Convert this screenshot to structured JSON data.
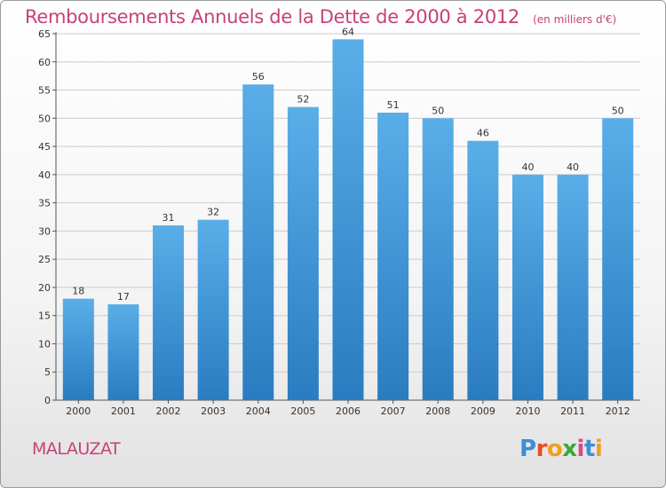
{
  "header": {
    "title": "Remboursements Annuels de la Dette de 2000 à 2012",
    "unit": "(en milliers d'€)"
  },
  "footer": {
    "commune": "MALAUZAT",
    "logo_letters": [
      "P",
      "r",
      "o",
      "x",
      "i",
      "t",
      "i"
    ]
  },
  "colors": {
    "title": "#c8407a",
    "bar_top": "#5aaee8",
    "bar_bottom": "#2a7cc0",
    "grid": "#cccccc",
    "logo": [
      "#3a8fd8",
      "#e84a2a",
      "#f0a020",
      "#3aa83a",
      "#d84a8a",
      "#3a8fd8",
      "#f0a020"
    ]
  },
  "chart_data": {
    "type": "bar",
    "title": "Remboursements Annuels de la Dette de 2000 à 2012",
    "subtitle": "(en milliers d'€)",
    "xlabel": "",
    "ylabel": "",
    "categories": [
      "2000",
      "2001",
      "2002",
      "2003",
      "2004",
      "2005",
      "2006",
      "2007",
      "2008",
      "2009",
      "2010",
      "2011",
      "2012"
    ],
    "values": [
      18,
      17,
      31,
      32,
      56,
      52,
      64,
      51,
      50,
      46,
      40,
      40,
      50
    ],
    "ylim": [
      0,
      65
    ],
    "yticks": [
      0,
      5,
      10,
      15,
      20,
      25,
      30,
      35,
      40,
      45,
      50,
      55,
      60,
      65
    ],
    "grid": true,
    "legend": "none"
  }
}
